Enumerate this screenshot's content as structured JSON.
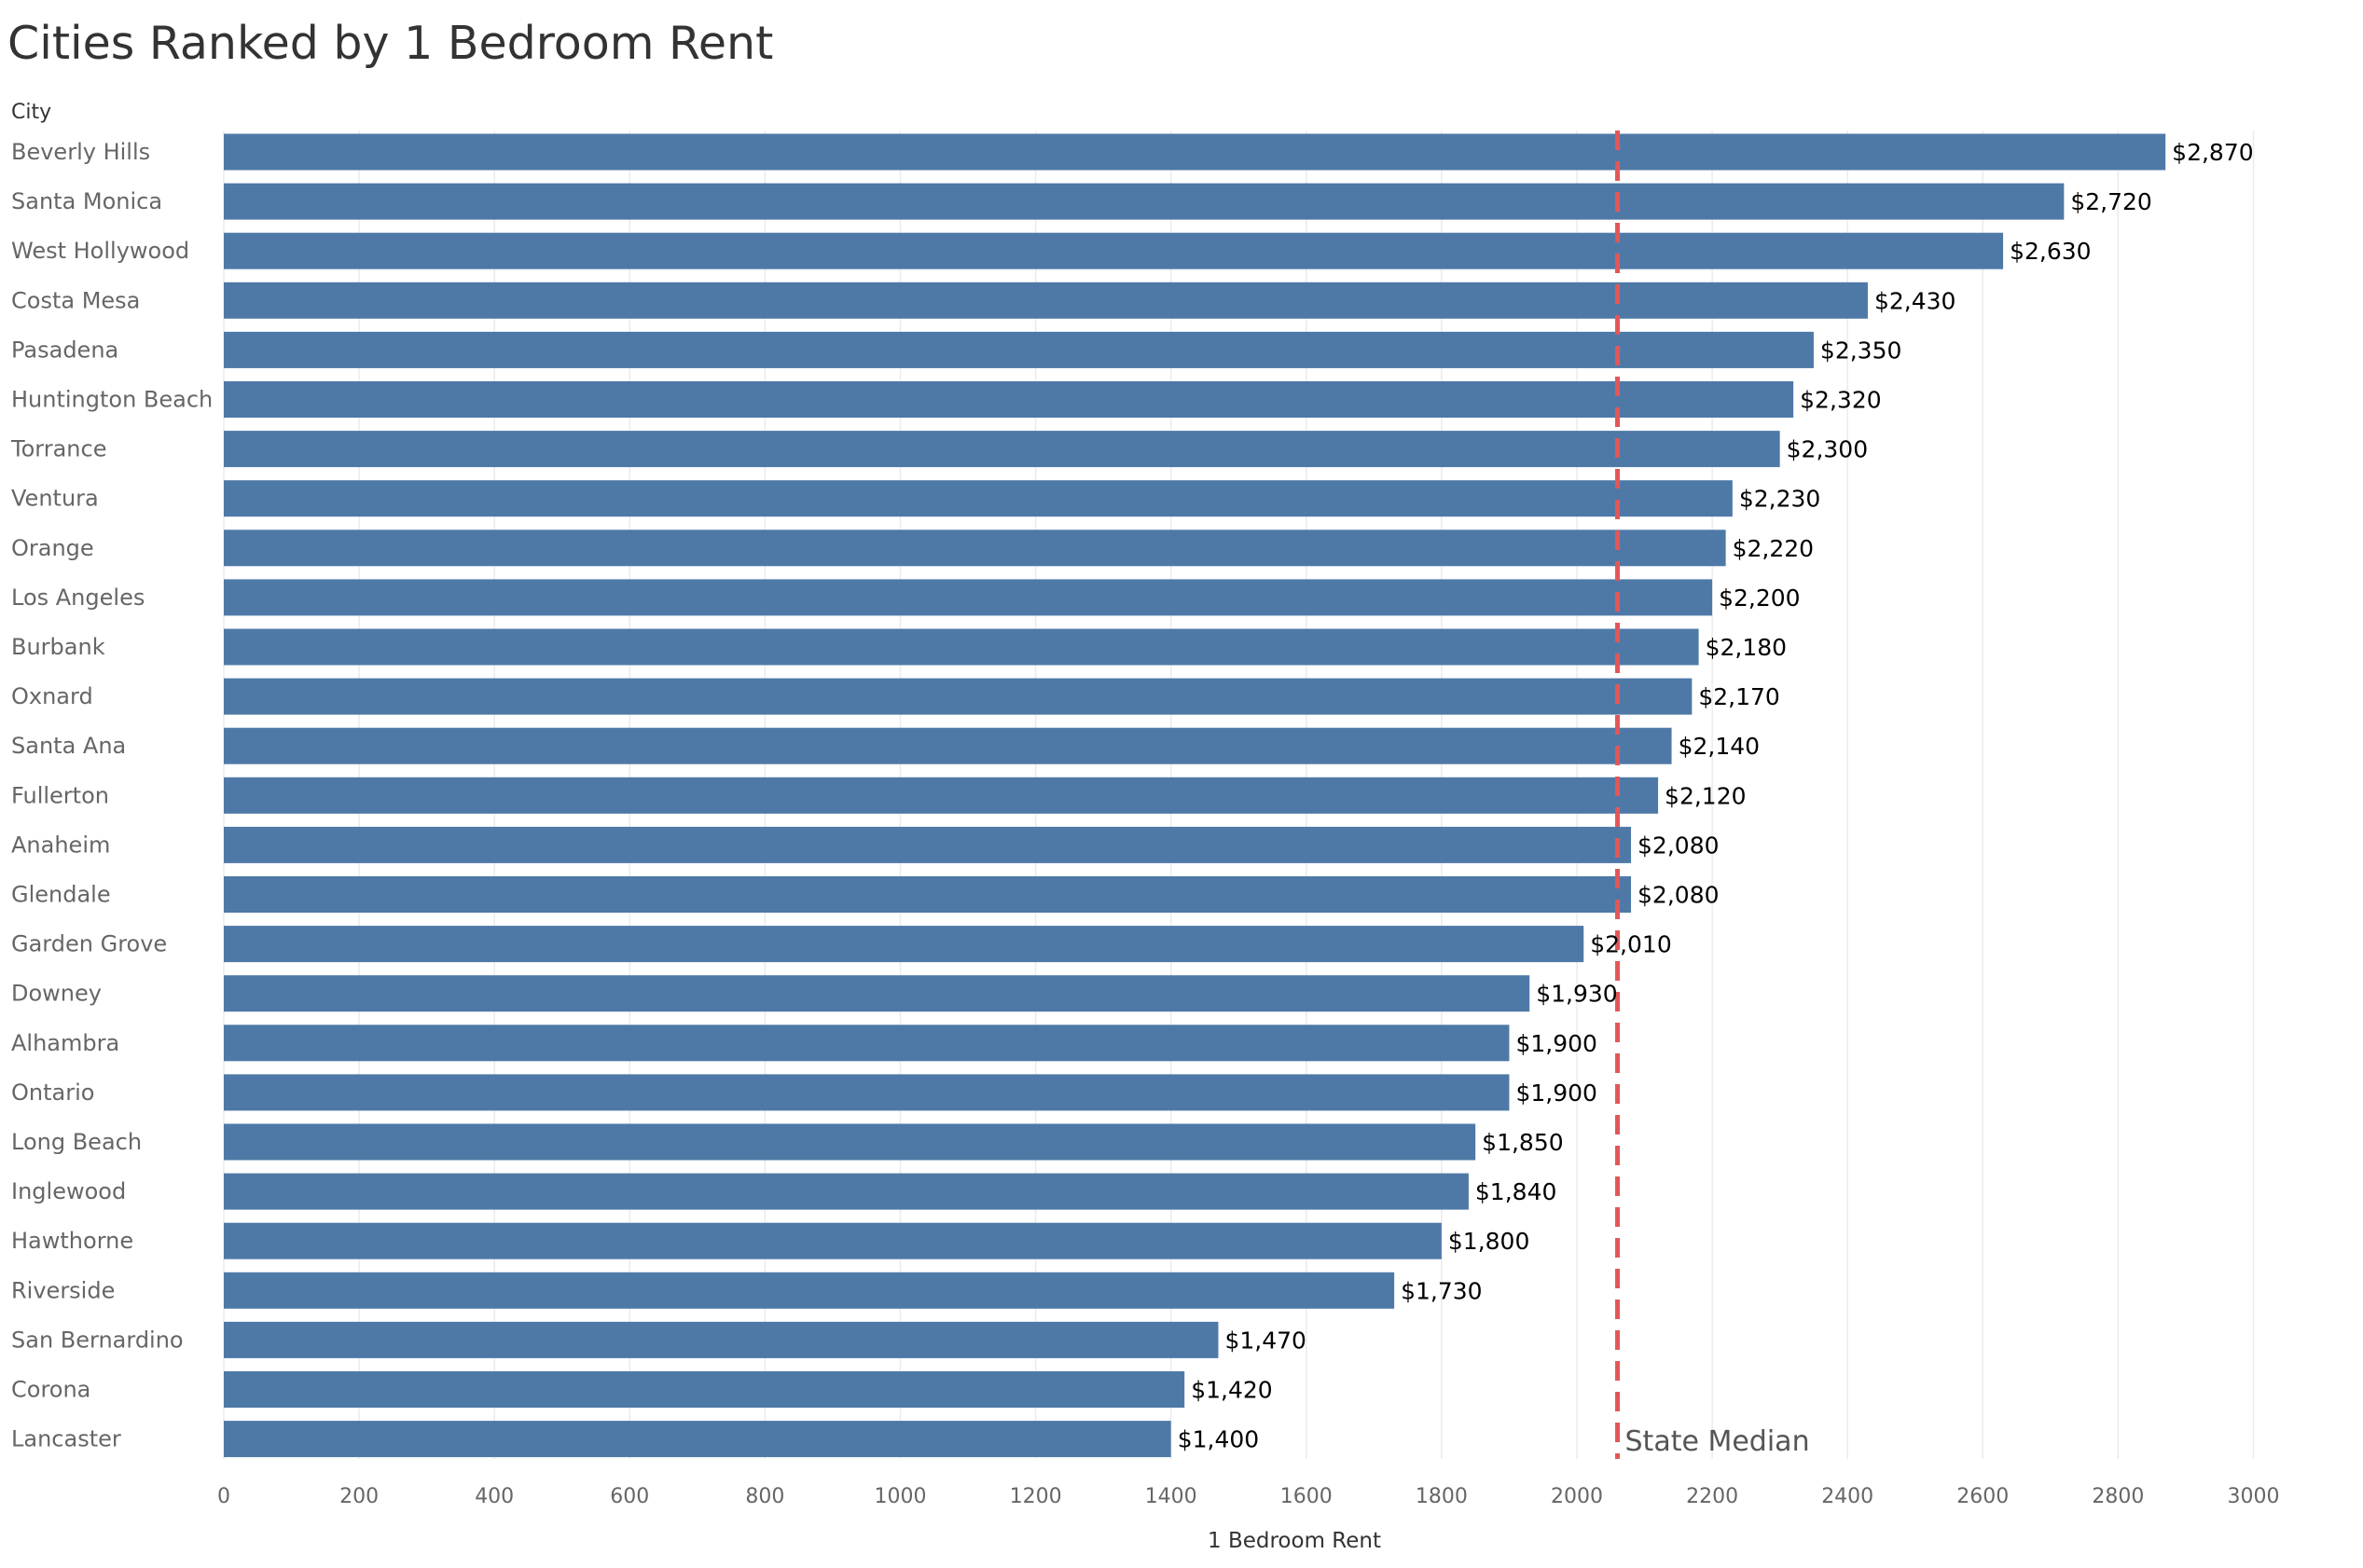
{
  "colors": {
    "bar": "#4E79A7",
    "reference_line": "#E15759",
    "grid": "#EBEBEB"
  },
  "chart_data": {
    "type": "bar",
    "orientation": "horizontal",
    "title": "Cities Ranked by 1 Bedroom Rent",
    "category_header": "City",
    "xlabel": "1 Bedroom Rent",
    "xlim": [
      0,
      3000
    ],
    "xticks": [
      0,
      200,
      400,
      600,
      800,
      1000,
      1200,
      1400,
      1600,
      1800,
      2000,
      2200,
      2400,
      2600,
      2800,
      3000
    ],
    "grid": true,
    "categories": [
      "Beverly Hills",
      "Santa Monica",
      "West Hollywood",
      "Costa Mesa",
      "Pasadena",
      "Huntington Beach",
      "Torrance",
      "Ventura",
      "Orange",
      "Los Angeles",
      "Burbank",
      "Oxnard",
      "Santa Ana",
      "Fullerton",
      "Anaheim",
      "Glendale",
      "Garden Grove",
      "Downey",
      "Alhambra",
      "Ontario",
      "Long Beach",
      "Inglewood",
      "Hawthorne",
      "Riverside",
      "San Bernardino",
      "Corona",
      "Lancaster"
    ],
    "values": [
      2870,
      2720,
      2630,
      2430,
      2350,
      2320,
      2300,
      2230,
      2220,
      2200,
      2180,
      2170,
      2140,
      2120,
      2080,
      2080,
      2010,
      1930,
      1900,
      1900,
      1850,
      1840,
      1800,
      1730,
      1470,
      1420,
      1400
    ],
    "value_labels": [
      "$2,870",
      "$2,720",
      "$2,630",
      "$2,430",
      "$2,350",
      "$2,320",
      "$2,300",
      "$2,230",
      "$2,220",
      "$2,200",
      "$2,180",
      "$2,170",
      "$2,140",
      "$2,120",
      "$2,080",
      "$2,080",
      "$2,010",
      "$1,930",
      "$1,900",
      "$1,900",
      "$1,850",
      "$1,840",
      "$1,800",
      "$1,730",
      "$1,470",
      "$1,420",
      "$1,400"
    ],
    "reference_line": {
      "label": "State Median",
      "value": 2060
    }
  }
}
